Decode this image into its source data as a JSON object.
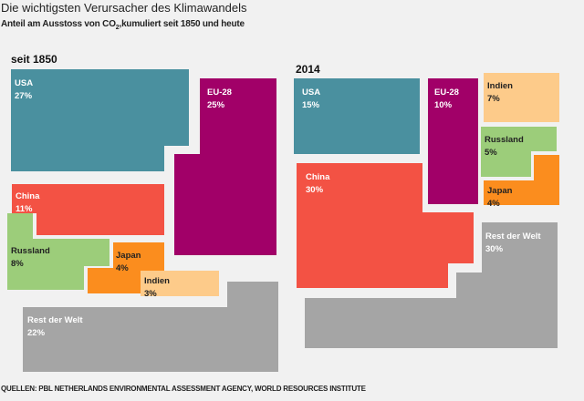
{
  "header": {
    "title": "Die wichtigsten Verursacher des Klimawandels",
    "subtitle_pre": "Anteil am Ausstoss von CO",
    "subtitle_sub": "2",
    "subtitle_post": ",kumuliert seit 1850 und heute"
  },
  "footer": {
    "source": "QUELLEN: PBL NETHERLANDS ENVIRONMENTAL ASSESSMENT AGENCY, WORLD RESOURCES INSTITUTE"
  },
  "colors": {
    "USA": "#4a909f",
    "EU-28": "#a10068",
    "China": "#f35244",
    "Russland": "#9ccd7a",
    "Japan": "#fb8d1e",
    "Indien": "#fdcb8a",
    "Rest der Welt": "#a5a5a5"
  },
  "chart_data": [
    {
      "type": "treemap",
      "title": "seit 1850",
      "unit": "%",
      "categories": [
        "USA",
        "EU-28",
        "China",
        "Russland",
        "Japan",
        "Indien",
        "Rest der Welt"
      ],
      "values": [
        27,
        25,
        11,
        8,
        4,
        3,
        22
      ],
      "labels": [
        "27%",
        "25%",
        "11%",
        "8%",
        "4%",
        "3%",
        "22%"
      ]
    },
    {
      "type": "treemap",
      "title": "2014",
      "unit": "%",
      "categories": [
        "USA",
        "EU-28",
        "Indien",
        "Russland",
        "China",
        "Japan",
        "Rest der Welt"
      ],
      "values": [
        15,
        10,
        7,
        5,
        30,
        4,
        30
      ],
      "labels": [
        "15%",
        "10%",
        "7%",
        "5%",
        "30%",
        "4%",
        "30%"
      ]
    }
  ]
}
